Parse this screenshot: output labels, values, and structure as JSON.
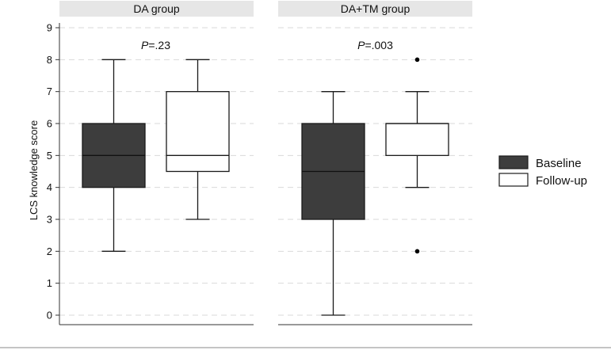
{
  "chart_data": {
    "type": "boxplot",
    "ylabel": "LCS knowledge score",
    "xlabel": "",
    "ylim": [
      0,
      9
    ],
    "yticks": [
      "0",
      "1",
      "2",
      "3",
      "4",
      "5",
      "6",
      "7",
      "8",
      "9"
    ],
    "grid": true,
    "legend_position": "right",
    "series_styles": [
      {
        "name": "Baseline",
        "fill": "#3d3d3d"
      },
      {
        "name": "Follow-up",
        "fill": "#ffffff"
      }
    ],
    "panels": [
      {
        "title": "DA group",
        "p_prefix": "P",
        "p_value": "=.23",
        "boxes": [
          {
            "series": "Baseline",
            "min": 2,
            "q1": 4,
            "median": 5,
            "q3": 6,
            "max": 8,
            "outliers": []
          },
          {
            "series": "Follow-up",
            "min": 3,
            "q1": 4.5,
            "median": 5,
            "q3": 7,
            "max": 8,
            "outliers": []
          }
        ]
      },
      {
        "title": "DA+TM group",
        "p_prefix": "P",
        "p_value": "=.003",
        "boxes": [
          {
            "series": "Baseline",
            "min": 0,
            "q1": 3,
            "median": 4.5,
            "q3": 6,
            "max": 7,
            "outliers": []
          },
          {
            "series": "Follow-up",
            "min": 4,
            "q1": 5,
            "median": 6,
            "q3": 6,
            "max": 7,
            "outliers": [
              2,
              8
            ]
          }
        ]
      }
    ],
    "legend": [
      "Baseline",
      "Follow-up"
    ]
  },
  "colors": {
    "strip_bg": "#e6e6e6",
    "grid": "#d9d9d9",
    "axis": "#333333",
    "box_stroke": "#1a1a1a",
    "footer_line": "#8a8a8a"
  }
}
